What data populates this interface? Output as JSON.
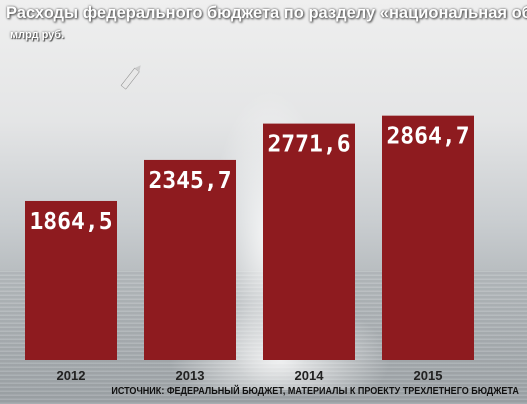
{
  "title": "Расходы федерального бюджета по разделу  «национальная оборона»",
  "unit": "млрд руб.",
  "source": "ИСТОЧНИК: ФЕДЕРАЛЬНЫЙ БЮДЖЕТ, МАТЕРИАЛЫ К ПРОЕКТУ ТРЕХЛЕТНЕГО БЮДЖЕТА",
  "colors": {
    "bar": "#8e1b1f",
    "label": "#ffffff"
  },
  "chart_data": {
    "type": "bar",
    "title": "Расходы федерального бюджета по разделу  «национальная оборона»",
    "ylabel": "млрд руб.",
    "categories": [
      "2012",
      "2013",
      "2014",
      "2015"
    ],
    "values": [
      1864.5,
      2345.7,
      2771.6,
      2864.7
    ],
    "value_labels": [
      "1864,5",
      "2345,7",
      "2771,6",
      "2864,7"
    ],
    "ylim": [
      0,
      3400
    ],
    "grid": false,
    "legend": "none"
  }
}
